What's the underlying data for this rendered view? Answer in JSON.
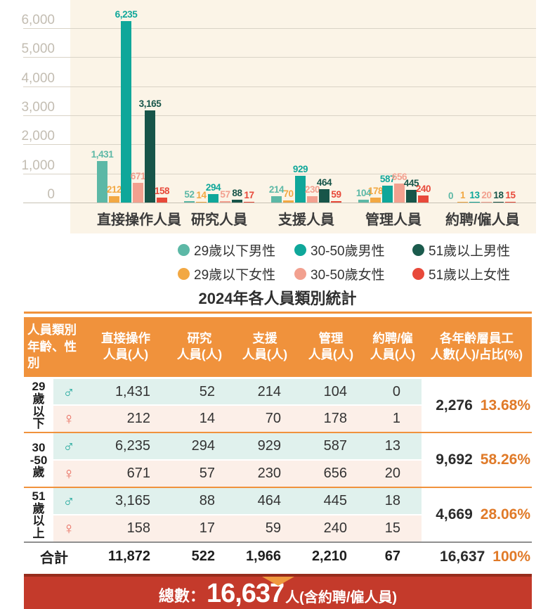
{
  "title": "2024年各人員類別統計",
  "chart_data": {
    "type": "bar",
    "title": "2024年各人員類別統計",
    "categories": [
      "直接操作人員",
      "研究人員",
      "支援人員",
      "管理人員",
      "約聘/僱人員"
    ],
    "series": [
      {
        "name": "29歲以下男性",
        "color": "#5CB8A6",
        "values": [
          1431,
          52,
          214,
          104,
          0
        ]
      },
      {
        "name": "29歲以下女性",
        "color": "#F2A843",
        "values": [
          212,
          14,
          70,
          178,
          1
        ]
      },
      {
        "name": "30-50歲男性",
        "color": "#0FA79A",
        "values": [
          6235,
          294,
          929,
          587,
          13
        ]
      },
      {
        "name": "30-50歲女性",
        "color": "#F2A08F",
        "values": [
          671,
          57,
          230,
          656,
          20
        ]
      },
      {
        "name": "51歲以上男性",
        "color": "#175549",
        "values": [
          3165,
          88,
          464,
          445,
          18
        ]
      },
      {
        "name": "51歲以上女性",
        "color": "#E8493A",
        "values": [
          158,
          17,
          59,
          240,
          15
        ]
      }
    ],
    "yticks": [
      0,
      1000,
      2000,
      3000,
      4000,
      5000,
      6000
    ],
    "ytick_labels": [
      "0",
      "1,000",
      "2,000",
      "3,000",
      "4,000",
      "5,000",
      "6,000"
    ],
    "ylim": [
      0,
      6960
    ],
    "grid": true,
    "legend_position": "bottom",
    "value_labels": true
  },
  "legend": {
    "items": [
      {
        "label": "29歲以下男性",
        "color": "#5CB8A6"
      },
      {
        "label": "30-50歲男性",
        "color": "#0FA79A"
      },
      {
        "label": "51歲以上男性",
        "color": "#1B5B4D"
      },
      {
        "label": "29歲以下女性",
        "color": "#F2A843"
      },
      {
        "label": "30-50歲女性",
        "color": "#F2A08F"
      },
      {
        "label": "51歲以上女性",
        "color": "#E8493A"
      }
    ]
  },
  "table": {
    "header": [
      {
        "line1": "人員類別",
        "line2": "年齡、性別"
      },
      {
        "line1": "直接操作",
        "line2": "人員(人)"
      },
      {
        "line1": "研究",
        "line2": "人員(人)"
      },
      {
        "line1": "支援",
        "line2": "人員(人)"
      },
      {
        "line1": "管理",
        "line2": "人員(人)"
      },
      {
        "line1": "約聘/僱",
        "line2": "人員(人)"
      },
      {
        "line1": "各年齡層員工",
        "line2": "人數(人)/占比(%)"
      }
    ],
    "groups": [
      {
        "age_lines": [
          "29",
          "歲",
          "以",
          "下"
        ],
        "male": {
          "symbol": "♂",
          "values": [
            "1,431",
            "52",
            "214",
            "104",
            "0"
          ]
        },
        "female": {
          "symbol": "♀",
          "values": [
            "212",
            "14",
            "70",
            "178",
            "1"
          ]
        },
        "subtotal": "2,276",
        "percent": "13.68%"
      },
      {
        "age_lines": [
          "30",
          "-50",
          "歲"
        ],
        "male": {
          "symbol": "♂",
          "values": [
            "6,235",
            "294",
            "929",
            "587",
            "13"
          ]
        },
        "female": {
          "symbol": "♀",
          "values": [
            "671",
            "57",
            "230",
            "656",
            "20"
          ]
        },
        "subtotal": "9,692",
        "percent": "58.26%"
      },
      {
        "age_lines": [
          "51",
          "歲",
          "以",
          "上"
        ],
        "male": {
          "symbol": "♂",
          "values": [
            "3,165",
            "88",
            "464",
            "445",
            "18"
          ]
        },
        "female": {
          "symbol": "♀",
          "values": [
            "158",
            "17",
            "59",
            "240",
            "15"
          ]
        },
        "subtotal": "4,669",
        "percent": "28.06%"
      }
    ],
    "total": {
      "label": "合計",
      "values": [
        "11,872",
        "522",
        "1,966",
        "2,210",
        "67"
      ],
      "sum": "16,637",
      "percent": "100%"
    }
  },
  "banner": {
    "prefix": "總數：",
    "number": "16,637",
    "suffix": "人(含約聘/僱人員)"
  },
  "colors": {
    "plot_bg": "#FBF4E7",
    "gridline": "#D9D3C6",
    "tick_label": "#C3BDB2",
    "category_label": "#3B3B3B",
    "header_bg": "#F0923C",
    "header_text": "#FFFFFF",
    "male_row_bg": "#E0F1ED",
    "female_row_bg": "#FCEFE8",
    "male_symbol": "#1FA79B",
    "female_symbol": "#E8695B",
    "percent_text": "#E07A28",
    "group_divider": "#F0923C",
    "total_divider": "#8F8F8F",
    "banner_bg": "#C43A2B",
    "banner_top_border": "#962C1C",
    "banner_triangle": "#F0993E"
  }
}
